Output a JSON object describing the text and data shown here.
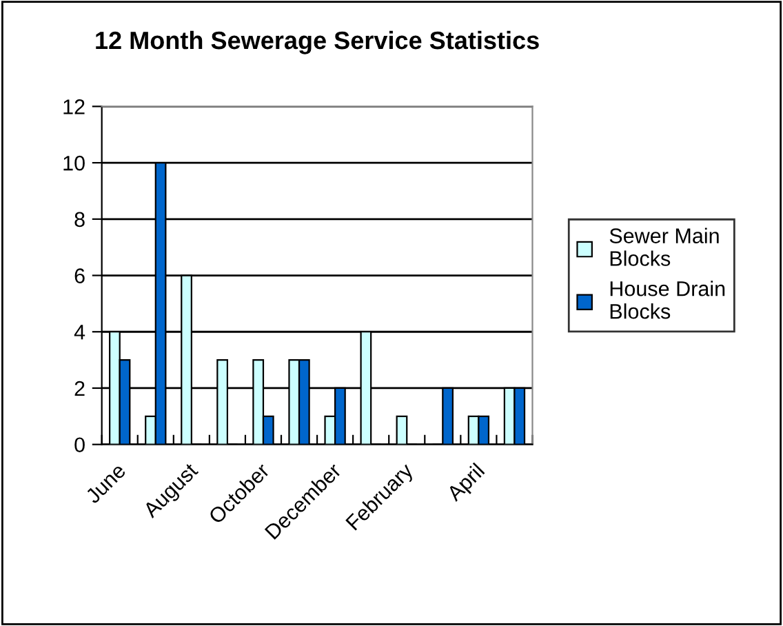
{
  "chart_data": {
    "type": "bar",
    "title": "12 Month Sewerage Service Statistics",
    "categories": [
      "June",
      null,
      "August",
      null,
      "October",
      null,
      "December",
      null,
      "February",
      null,
      "April",
      null
    ],
    "series": [
      {
        "name": "Sewer Main Blocks",
        "color": "#ccffff",
        "values": [
          4,
          1,
          6,
          3,
          3,
          3,
          1,
          4,
          1,
          0,
          1,
          2
        ]
      },
      {
        "name": "House Drain Blocks",
        "color": "#0066cc",
        "values": [
          3,
          10,
          0,
          0,
          1,
          3,
          2,
          0,
          0,
          2,
          1,
          2
        ]
      }
    ],
    "ylim": [
      0,
      12
    ],
    "yticks": [
      0,
      2,
      4,
      6,
      8,
      10,
      12
    ],
    "grid": "y",
    "legend": "right"
  }
}
